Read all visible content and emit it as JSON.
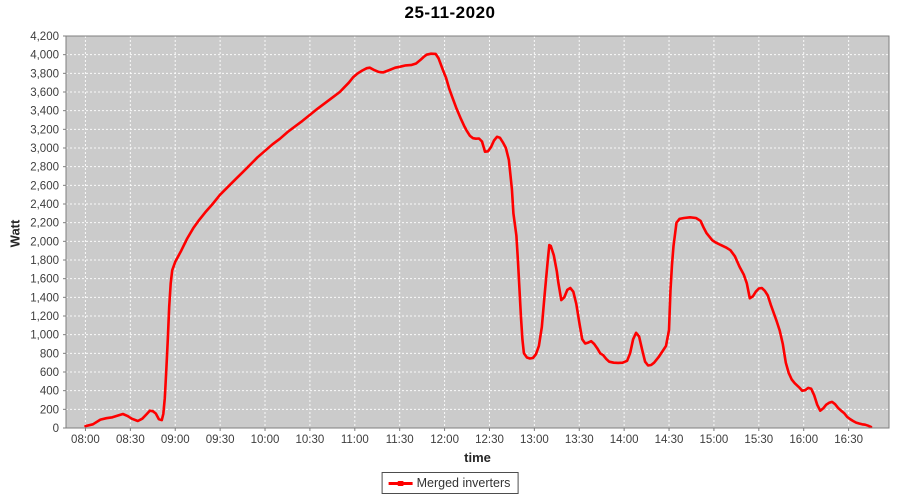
{
  "title": "25-11-2020",
  "legend": {
    "label": "Merged inverters"
  },
  "colors": {
    "series_line": "#fe0000",
    "plot_background": "#cbcbcb",
    "plot_border": "#7f7f7f",
    "gridline": "#ffffff",
    "tick_label": "#3d3d3d",
    "outer_background": "#ffffff"
  },
  "chart_data": {
    "type": "line",
    "title": "25-11-2020",
    "xlabel": "time",
    "ylabel": "Watt",
    "x_unit": "minutes since 08:00",
    "xlim_minutes": [
      -13,
      537
    ],
    "ylim": [
      0,
      4200
    ],
    "grid": "white dashed on gray plot background",
    "legend_position": "bottom-center",
    "x_ticks": [
      {
        "m": 0,
        "label": "08:00"
      },
      {
        "m": 30,
        "label": "08:30"
      },
      {
        "m": 60,
        "label": "09:00"
      },
      {
        "m": 90,
        "label": "09:30"
      },
      {
        "m": 120,
        "label": "10:00"
      },
      {
        "m": 150,
        "label": "10:30"
      },
      {
        "m": 180,
        "label": "11:00"
      },
      {
        "m": 210,
        "label": "11:30"
      },
      {
        "m": 240,
        "label": "12:00"
      },
      {
        "m": 270,
        "label": "12:30"
      },
      {
        "m": 300,
        "label": "13:00"
      },
      {
        "m": 330,
        "label": "13:30"
      },
      {
        "m": 360,
        "label": "14:00"
      },
      {
        "m": 390,
        "label": "14:30"
      },
      {
        "m": 420,
        "label": "15:00"
      },
      {
        "m": 450,
        "label": "15:30"
      },
      {
        "m": 480,
        "label": "16:00"
      },
      {
        "m": 510,
        "label": "16:30"
      }
    ],
    "y_ticks": [
      {
        "v": 0,
        "label": "0"
      },
      {
        "v": 200,
        "label": "200"
      },
      {
        "v": 400,
        "label": "400"
      },
      {
        "v": 600,
        "label": "600"
      },
      {
        "v": 800,
        "label": "800"
      },
      {
        "v": 1000,
        "label": "1,000"
      },
      {
        "v": 1200,
        "label": "1,200"
      },
      {
        "v": 1400,
        "label": "1,400"
      },
      {
        "v": 1600,
        "label": "1,600"
      },
      {
        "v": 1800,
        "label": "1,800"
      },
      {
        "v": 2000,
        "label": "2,000"
      },
      {
        "v": 2200,
        "label": "2,200"
      },
      {
        "v": 2400,
        "label": "2,400"
      },
      {
        "v": 2600,
        "label": "2,600"
      },
      {
        "v": 2800,
        "label": "2,800"
      },
      {
        "v": 3000,
        "label": "3,000"
      },
      {
        "v": 3200,
        "label": "3,200"
      },
      {
        "v": 3400,
        "label": "3,400"
      },
      {
        "v": 3600,
        "label": "3,600"
      },
      {
        "v": 3800,
        "label": "3,800"
      },
      {
        "v": 4000,
        "label": "4,000"
      },
      {
        "v": 4200,
        "label": "4,200"
      }
    ],
    "series": [
      {
        "name": "Merged inverters",
        "color": "#fe0000",
        "points": [
          [
            0,
            20
          ],
          [
            5,
            40
          ],
          [
            10,
            90
          ],
          [
            14,
            105
          ],
          [
            18,
            115
          ],
          [
            22,
            135
          ],
          [
            25,
            150
          ],
          [
            28,
            130
          ],
          [
            31,
            100
          ],
          [
            35,
            75
          ],
          [
            38,
            100
          ],
          [
            41,
            150
          ],
          [
            43,
            185
          ],
          [
            45,
            180
          ],
          [
            47,
            155
          ],
          [
            49,
            95
          ],
          [
            51,
            85
          ],
          [
            52,
            150
          ],
          [
            53,
            320
          ],
          [
            54,
            620
          ],
          [
            55,
            950
          ],
          [
            56,
            1300
          ],
          [
            57,
            1550
          ],
          [
            58,
            1690
          ],
          [
            60,
            1780
          ],
          [
            64,
            1900
          ],
          [
            68,
            2030
          ],
          [
            72,
            2140
          ],
          [
            76,
            2230
          ],
          [
            80,
            2310
          ],
          [
            85,
            2400
          ],
          [
            90,
            2500
          ],
          [
            95,
            2580
          ],
          [
            100,
            2660
          ],
          [
            105,
            2740
          ],
          [
            110,
            2820
          ],
          [
            115,
            2900
          ],
          [
            120,
            2970
          ],
          [
            125,
            3040
          ],
          [
            130,
            3100
          ],
          [
            135,
            3170
          ],
          [
            140,
            3230
          ],
          [
            145,
            3290
          ],
          [
            150,
            3355
          ],
          [
            155,
            3420
          ],
          [
            160,
            3480
          ],
          [
            165,
            3540
          ],
          [
            170,
            3600
          ],
          [
            173,
            3650
          ],
          [
            176,
            3700
          ],
          [
            179,
            3760
          ],
          [
            182,
            3800
          ],
          [
            185,
            3830
          ],
          [
            188,
            3855
          ],
          [
            190,
            3860
          ],
          [
            193,
            3835
          ],
          [
            196,
            3815
          ],
          [
            199,
            3810
          ],
          [
            203,
            3835
          ],
          [
            207,
            3860
          ],
          [
            210,
            3870
          ],
          [
            214,
            3885
          ],
          [
            218,
            3890
          ],
          [
            221,
            3905
          ],
          [
            224,
            3945
          ],
          [
            226,
            3975
          ],
          [
            228,
            4000
          ],
          [
            231,
            4010
          ],
          [
            234,
            4008
          ],
          [
            236,
            3960
          ],
          [
            239,
            3830
          ],
          [
            241,
            3750
          ],
          [
            243,
            3640
          ],
          [
            245,
            3550
          ],
          [
            248,
            3420
          ],
          [
            251,
            3310
          ],
          [
            253,
            3240
          ],
          [
            255,
            3180
          ],
          [
            257,
            3130
          ],
          [
            259,
            3105
          ],
          [
            261,
            3100
          ],
          [
            263,
            3102
          ],
          [
            265,
            3070
          ],
          [
            267,
            2960
          ],
          [
            269,
            2965
          ],
          [
            271,
            3010
          ],
          [
            273,
            3080
          ],
          [
            275,
            3120
          ],
          [
            277,
            3110
          ],
          [
            279,
            3060
          ],
          [
            281,
            3000
          ],
          [
            283,
            2870
          ],
          [
            285,
            2560
          ],
          [
            286,
            2300
          ],
          [
            288,
            2060
          ],
          [
            289,
            1800
          ],
          [
            290,
            1500
          ],
          [
            291,
            1200
          ],
          [
            292,
            950
          ],
          [
            293,
            800
          ],
          [
            295,
            755
          ],
          [
            297,
            745
          ],
          [
            299,
            750
          ],
          [
            301,
            790
          ],
          [
            303,
            880
          ],
          [
            305,
            1080
          ],
          [
            307,
            1450
          ],
          [
            309,
            1800
          ],
          [
            310,
            1960
          ],
          [
            311,
            1950
          ],
          [
            313,
            1850
          ],
          [
            315,
            1680
          ],
          [
            316,
            1560
          ],
          [
            318,
            1370
          ],
          [
            320,
            1400
          ],
          [
            322,
            1480
          ],
          [
            324,
            1500
          ],
          [
            326,
            1460
          ],
          [
            328,
            1330
          ],
          [
            330,
            1130
          ],
          [
            332,
            950
          ],
          [
            334,
            905
          ],
          [
            336,
            915
          ],
          [
            338,
            930
          ],
          [
            340,
            900
          ],
          [
            342,
            855
          ],
          [
            344,
            800
          ],
          [
            346,
            780
          ],
          [
            348,
            740
          ],
          [
            350,
            710
          ],
          [
            353,
            700
          ],
          [
            356,
            698
          ],
          [
            359,
            700
          ],
          [
            362,
            720
          ],
          [
            364,
            800
          ],
          [
            366,
            950
          ],
          [
            368,
            1020
          ],
          [
            370,
            980
          ],
          [
            372,
            840
          ],
          [
            374,
            710
          ],
          [
            376,
            670
          ],
          [
            378,
            675
          ],
          [
            380,
            700
          ],
          [
            383,
            760
          ],
          [
            386,
            830
          ],
          [
            388,
            880
          ],
          [
            390,
            1050
          ],
          [
            391,
            1480
          ],
          [
            392,
            1750
          ],
          [
            393,
            1950
          ],
          [
            395,
            2200
          ],
          [
            397,
            2240
          ],
          [
            400,
            2250
          ],
          [
            404,
            2258
          ],
          [
            408,
            2250
          ],
          [
            411,
            2220
          ],
          [
            413,
            2150
          ],
          [
            415,
            2090
          ],
          [
            417,
            2050
          ],
          [
            419,
            2010
          ],
          [
            421,
            1990
          ],
          [
            424,
            1965
          ],
          [
            428,
            1935
          ],
          [
            431,
            1905
          ],
          [
            434,
            1840
          ],
          [
            437,
            1730
          ],
          [
            440,
            1640
          ],
          [
            442,
            1550
          ],
          [
            444,
            1390
          ],
          [
            446,
            1410
          ],
          [
            448,
            1460
          ],
          [
            450,
            1495
          ],
          [
            452,
            1500
          ],
          [
            454,
            1470
          ],
          [
            456,
            1420
          ],
          [
            458,
            1320
          ],
          [
            460,
            1230
          ],
          [
            462,
            1140
          ],
          [
            464,
            1040
          ],
          [
            466,
            900
          ],
          [
            468,
            700
          ],
          [
            470,
            590
          ],
          [
            472,
            520
          ],
          [
            474,
            480
          ],
          [
            477,
            435
          ],
          [
            479,
            400
          ],
          [
            481,
            405
          ],
          [
            483,
            430
          ],
          [
            485,
            420
          ],
          [
            487,
            350
          ],
          [
            489,
            250
          ],
          [
            491,
            185
          ],
          [
            493,
            210
          ],
          [
            495,
            250
          ],
          [
            497,
            270
          ],
          [
            499,
            280
          ],
          [
            501,
            255
          ],
          [
            503,
            215
          ],
          [
            505,
            185
          ],
          [
            507,
            160
          ],
          [
            509,
            120
          ],
          [
            511,
            95
          ],
          [
            513,
            75
          ],
          [
            515,
            58
          ],
          [
            517,
            48
          ],
          [
            519,
            40
          ],
          [
            521,
            35
          ],
          [
            523,
            25
          ],
          [
            525,
            12
          ]
        ]
      }
    ]
  }
}
